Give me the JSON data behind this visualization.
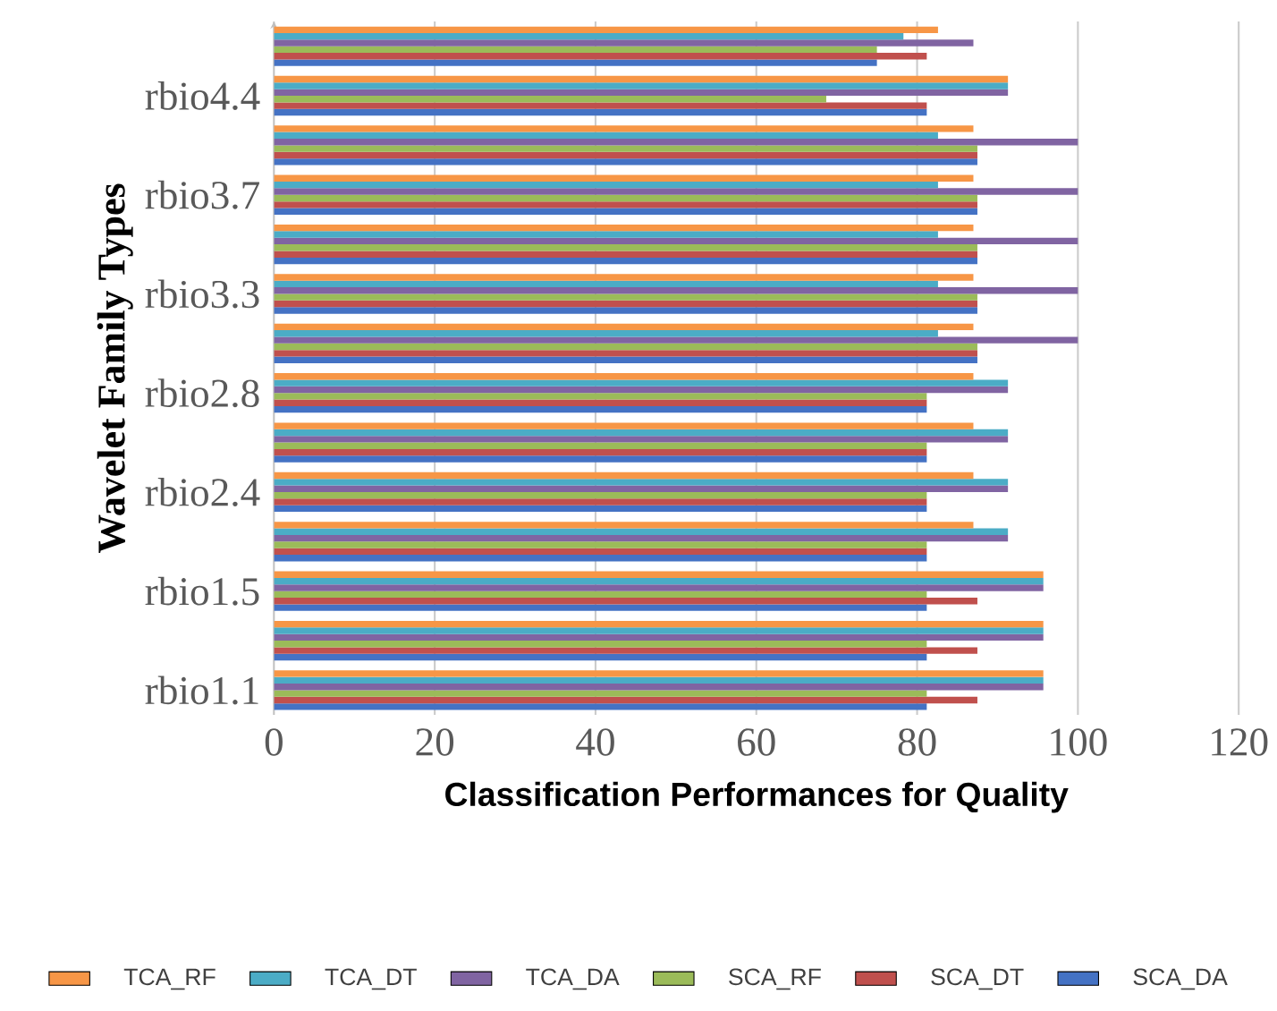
{
  "chart_data": {
    "type": "bar",
    "orientation": "horizontal",
    "xlabel": "Classification Performances for Quality",
    "ylabel": "Wavelet Family Types",
    "categories": [
      null,
      "rbio4.4",
      null,
      "rbio3.7",
      null,
      "rbio3.3",
      null,
      "rbio2.8",
      null,
      "rbio2.4",
      null,
      "rbio1.5",
      null,
      "rbio1.1"
    ],
    "series": [
      {
        "name": "SCA_DA",
        "color": "#4472c4",
        "values": [
          75,
          81.2,
          87.5,
          87.5,
          87.5,
          87.5,
          87.5,
          81.2,
          81.2,
          81.2,
          81.2,
          81.2,
          81.2,
          81.2
        ]
      },
      {
        "name": "SCA_DT",
        "color": "#c0504d",
        "values": [
          81.2,
          81.2,
          87.5,
          87.5,
          87.5,
          87.5,
          87.5,
          81.2,
          81.2,
          81.2,
          81.2,
          87.5,
          87.5,
          87.5
        ]
      },
      {
        "name": "SCA_RF",
        "color": "#9bbb59",
        "values": [
          75,
          68.7,
          87.5,
          87.5,
          87.5,
          87.5,
          87.5,
          81.2,
          81.2,
          81.2,
          81.2,
          81.2,
          81.2,
          81.2
        ]
      },
      {
        "name": "TCA_DA",
        "color": "#8064a2",
        "values": [
          87,
          91.3,
          100,
          100,
          100,
          100,
          100,
          91.3,
          91.3,
          91.3,
          91.3,
          95.7,
          95.7,
          95.7
        ]
      },
      {
        "name": "TCA_DT",
        "color": "#4bacc6",
        "values": [
          78.3,
          91.3,
          82.6,
          82.6,
          82.6,
          82.6,
          82.6,
          91.3,
          91.3,
          91.3,
          91.3,
          95.7,
          95.7,
          95.7
        ]
      },
      {
        "name": "TCA_RF",
        "color": "#f79646",
        "values": [
          82.6,
          91.3,
          87,
          87,
          87,
          87,
          87,
          87,
          87,
          87,
          87,
          95.7,
          95.7,
          95.7
        ]
      }
    ],
    "xlim": [
      0,
      120
    ],
    "xticks": [
      0,
      20,
      40,
      60,
      80,
      100,
      120
    ],
    "grid": "x",
    "legend": "bottom"
  }
}
